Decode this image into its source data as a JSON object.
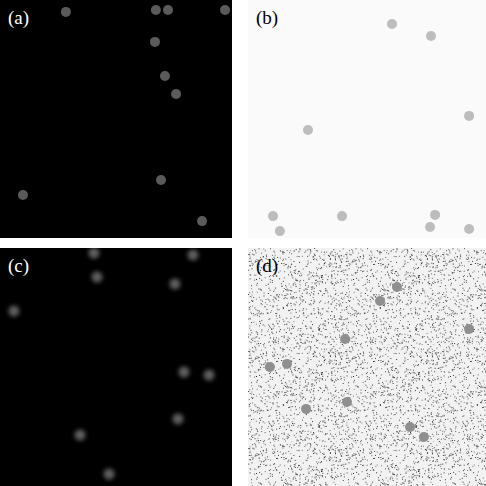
{
  "chart_data": [
    {
      "type": "scatter",
      "title": "(a)",
      "marker": "circle",
      "color": "#5a5a5a",
      "tick_labels": false,
      "xlim": [
        0,
        100
      ],
      "ylim": [
        0,
        100
      ],
      "x": [
        28.4,
        67.2,
        72.4,
        97.0,
        66.8,
        71.1,
        75.9,
        9.9,
        69.4,
        87.1
      ],
      "values": [
        95.0,
        95.8,
        95.8,
        95.8,
        82.4,
        68.1,
        60.5,
        18.1,
        24.4,
        7.1
      ]
    },
    {
      "type": "scatter",
      "title": "(b)",
      "marker": "circle",
      "color": "#bdbdbd",
      "tick_labels": false,
      "xlim": [
        0,
        100
      ],
      "ylim": [
        0,
        100
      ],
      "x": [
        60.5,
        76.9,
        25.2,
        92.9,
        10.5,
        13.4,
        39.5,
        78.6,
        76.5,
        92.9
      ],
      "values": [
        89.9,
        84.9,
        45.4,
        51.3,
        9.2,
        2.9,
        9.2,
        9.7,
        4.6,
        3.8
      ]
    },
    {
      "type": "scatter",
      "title": "(c)",
      "marker": "blurred",
      "color": "#5e5e5e",
      "tick_labels": false,
      "xlim": [
        0,
        100
      ],
      "ylim": [
        0,
        100
      ],
      "x": [
        40.5,
        41.8,
        6.0,
        75.4,
        83.2,
        79.3,
        90.1,
        76.7,
        34.5,
        47.0
      ],
      "values": [
        97.9,
        87.8,
        73.5,
        84.9,
        97.1,
        47.9,
        46.6,
        28.2,
        21.4,
        5.0
      ]
    },
    {
      "type": "scatter",
      "title": "(d)",
      "marker": "circle",
      "color": "#8f8f8f",
      "tick_labels": false,
      "xlim": [
        0,
        100
      ],
      "ylim": [
        0,
        100
      ],
      "x": [
        62.6,
        55.5,
        92.9,
        40.8,
        9.2,
        16.4,
        24.4,
        41.6,
        68.1,
        73.9
      ],
      "values": [
        83.6,
        77.7,
        66.0,
        61.8,
        50.0,
        51.3,
        32.4,
        35.3,
        24.8,
        20.6
      ]
    }
  ]
}
